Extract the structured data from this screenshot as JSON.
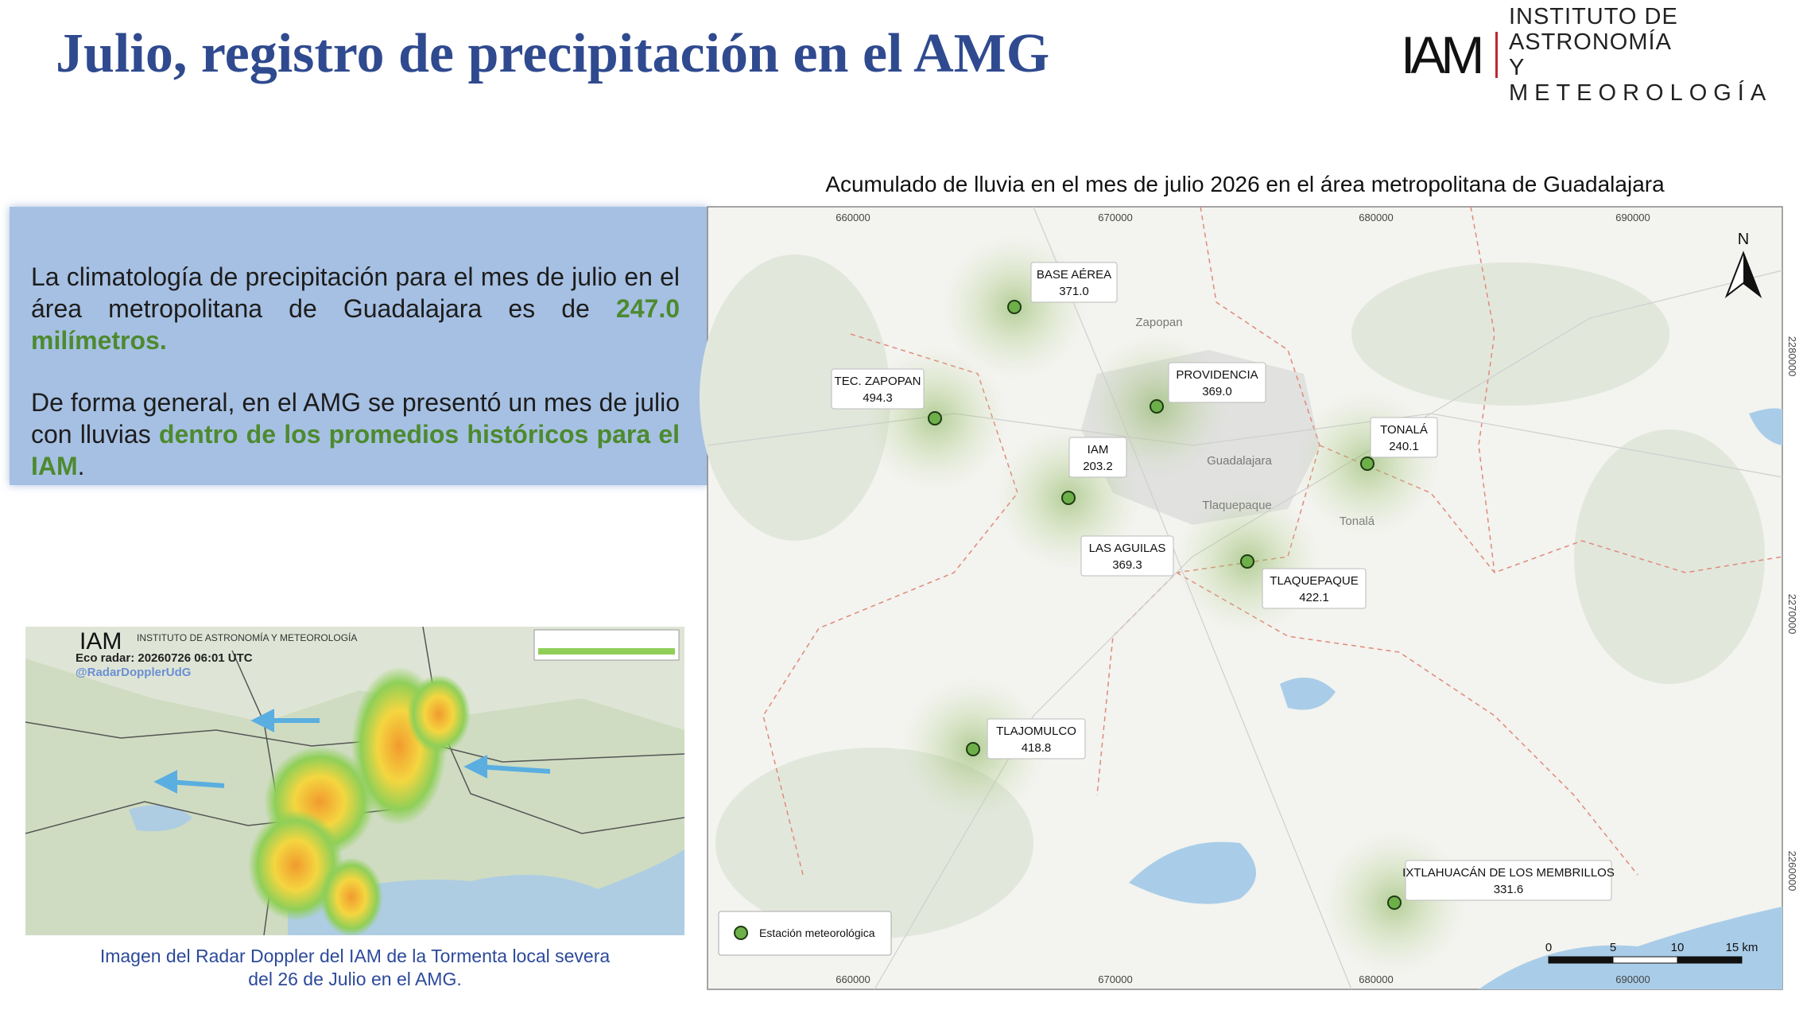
{
  "header": {
    "title": "Julio, registro de precipitación en el AMG"
  },
  "logo": {
    "mark": "IAM",
    "line1": "INSTITUTO DE ASTRONOMÍA",
    "line2": "Y METEOROLOGÍA"
  },
  "summary": {
    "paragraph1": {
      "text": "La climatología de precipitación para el mes de julio en el área metropolitana de Guadalajara es de ",
      "highlight": "247.0 milímetros."
    },
    "paragraph2": {
      "text": "De forma general, en el AMG se presentó un mes de julio con lluvias ",
      "highlight": "dentro de los promedios históricos para el IAM",
      "end": "."
    }
  },
  "radar": {
    "logo_mark": "IAM",
    "logo_text": "INSTITUTO DE ASTRONOMÍA Y METEOROLOGÍA",
    "timestamp": "Eco radar: 20260726 06:01 UTC",
    "handle": "@RadarDopplerUdG",
    "caption": [
      "Imagen del Radar Doppler del IAM de la Tormenta local severa",
      "del 26 de Julio en el AMG."
    ]
  },
  "map": {
    "title": "Acumulado de lluvia en el mes de julio 2026 en el área metropolitana de Guadalajara",
    "x_ticks": [
      "660000",
      "670000",
      "680000",
      "690000"
    ],
    "y_ticks": [
      "2280000",
      "2270000",
      "2260000"
    ],
    "north": "N",
    "places": [
      "Zapopan",
      "Guadalajara",
      "Tlaquepaque",
      "Tonalá"
    ],
    "stations": [
      {
        "name": "BASE AÉREA",
        "value": "371.0"
      },
      {
        "name": "TEC. ZAPOPAN",
        "value": "494.3"
      },
      {
        "name": "PROVIDENCIA",
        "value": "369.0"
      },
      {
        "name": "IAM",
        "value": "203.2"
      },
      {
        "name": "LAS AGUILAS",
        "value": "369.3"
      },
      {
        "name": "TONALÁ",
        "value": "240.1"
      },
      {
        "name": "TLAQUEPAQUE",
        "value": "422.1"
      },
      {
        "name": "TLAJOMULCO",
        "value": "418.8"
      },
      {
        "name": "IXTLAHUACÁN DE LOS MEMBRILLOS",
        "value": "331.6"
      }
    ],
    "legend": "Estación meteorológica",
    "scale": [
      "0",
      "5",
      "10",
      "15 km"
    ]
  }
}
